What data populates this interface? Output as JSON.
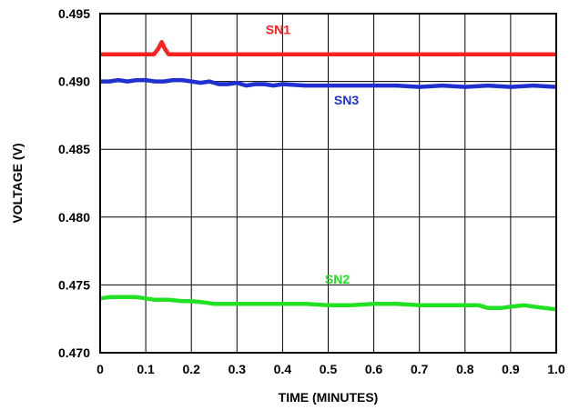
{
  "chart_data": {
    "type": "line",
    "xlabel": "TIME (MINUTES)",
    "ylabel": "VOLTAGE (V)",
    "xlim": [
      0,
      1.0
    ],
    "ylim": [
      0.47,
      0.495
    ],
    "grid": true,
    "x_ticks": [
      "0",
      "0.1",
      "0.2",
      "0.3",
      "0.4",
      "0.5",
      "0.6",
      "0.7",
      "0.8",
      "0.9",
      "1.0"
    ],
    "y_ticks": [
      "0.470",
      "0.475",
      "0.480",
      "0.485",
      "0.490",
      "0.495"
    ],
    "series": [
      {
        "name": "SN1",
        "color": "#ff2020",
        "label_at": [
          0.39,
          0.4935
        ],
        "x": [
          0,
          0.1,
          0.118,
          0.127,
          0.135,
          0.142,
          0.15,
          0.2,
          0.3,
          0.4,
          0.5,
          0.6,
          0.7,
          0.8,
          0.9,
          1.0
        ],
        "y": [
          0.492,
          0.492,
          0.492,
          0.4924,
          0.4929,
          0.4924,
          0.492,
          0.492,
          0.492,
          0.492,
          0.492,
          0.492,
          0.492,
          0.492,
          0.492,
          0.492
        ]
      },
      {
        "name": "SN3",
        "color": "#2030d0",
        "label_at": [
          0.54,
          0.4883
        ],
        "x": [
          0,
          0.02,
          0.04,
          0.06,
          0.08,
          0.1,
          0.12,
          0.14,
          0.16,
          0.18,
          0.2,
          0.22,
          0.24,
          0.26,
          0.28,
          0.3,
          0.32,
          0.34,
          0.36,
          0.38,
          0.4,
          0.45,
          0.5,
          0.55,
          0.6,
          0.65,
          0.7,
          0.75,
          0.8,
          0.85,
          0.9,
          0.95,
          1.0
        ],
        "y": [
          0.49,
          0.49,
          0.4901,
          0.49,
          0.4901,
          0.4901,
          0.49,
          0.49,
          0.4901,
          0.4901,
          0.49,
          0.4899,
          0.49,
          0.4898,
          0.4898,
          0.4899,
          0.4897,
          0.4898,
          0.4898,
          0.4897,
          0.4898,
          0.4897,
          0.4897,
          0.4897,
          0.4897,
          0.4897,
          0.4896,
          0.4897,
          0.4896,
          0.4897,
          0.4896,
          0.4897,
          0.4896
        ]
      },
      {
        "name": "SN2",
        "color": "#22e022",
        "label_at": [
          0.52,
          0.4751
        ],
        "x": [
          0,
          0.02,
          0.05,
          0.08,
          0.1,
          0.12,
          0.15,
          0.18,
          0.2,
          0.23,
          0.25,
          0.3,
          0.35,
          0.4,
          0.45,
          0.5,
          0.55,
          0.6,
          0.65,
          0.7,
          0.75,
          0.8,
          0.83,
          0.85,
          0.88,
          0.9,
          0.93,
          0.95,
          1.0
        ],
        "y": [
          0.474,
          0.4741,
          0.4741,
          0.4741,
          0.474,
          0.4739,
          0.4739,
          0.4738,
          0.4738,
          0.4737,
          0.4736,
          0.4736,
          0.4736,
          0.4736,
          0.4736,
          0.4735,
          0.4735,
          0.4736,
          0.4736,
          0.4735,
          0.4735,
          0.4735,
          0.4735,
          0.4733,
          0.4733,
          0.4734,
          0.4735,
          0.4734,
          0.4732
        ]
      }
    ]
  }
}
